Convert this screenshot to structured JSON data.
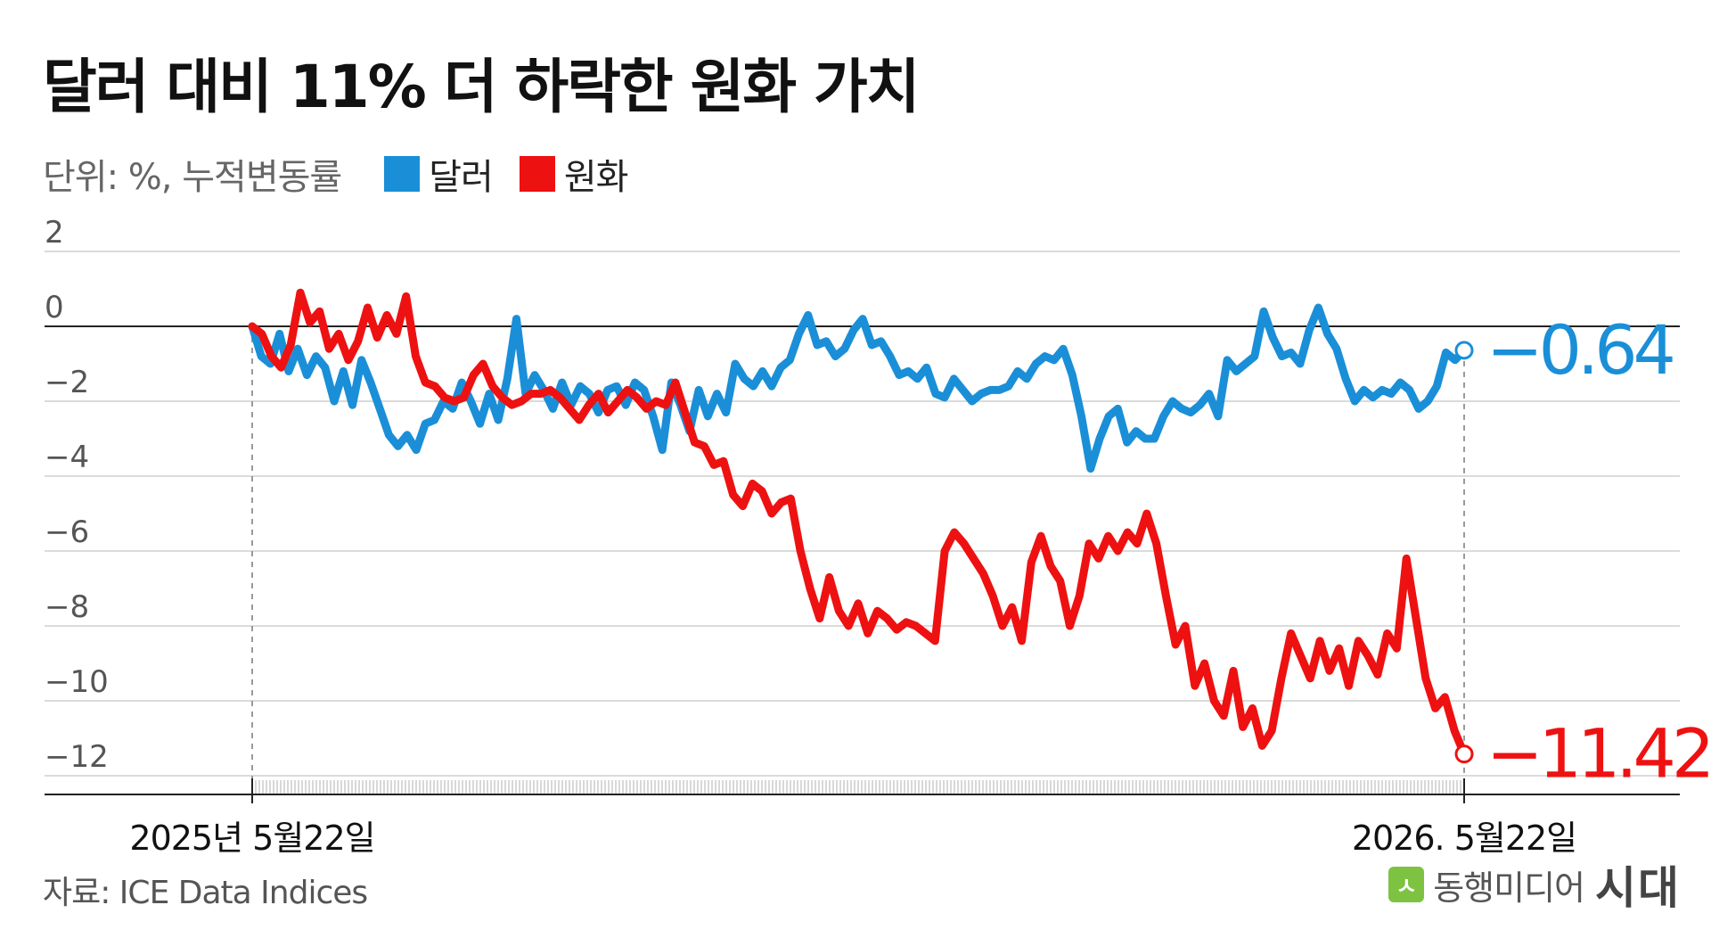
{
  "title": "달러 대비 11% 더 하락한 원화 가치",
  "unit_label": "단위: %, 누적변동률",
  "legend": [
    {
      "label": "달러",
      "color": "#1a8fd8"
    },
    {
      "label": "원화",
      "color": "#ee1111"
    }
  ],
  "source": "자료: ICE Data Indices",
  "brand": {
    "logo_glyph": "ㅅ",
    "name": "동행미디어",
    "tag": "시대",
    "logo_color": "#7dc241"
  },
  "chart_data": {
    "type": "line",
    "title": "달러 대비 11% 더 하락한 원화 가치",
    "xlabel": "",
    "ylabel": "단위: %, 누적변동률",
    "ylim": [
      -12.5,
      2
    ],
    "yticks": [
      2,
      0,
      -2,
      -4,
      -6,
      -8,
      -10,
      -12
    ],
    "ytick_labels": [
      "2",
      "0",
      "−2",
      "−4",
      "−6",
      "−8",
      "−10",
      "−12"
    ],
    "x_start_label": "2025년 5월22일",
    "x_end_label": "2026. 5월22일",
    "grid": true,
    "legend_position": "top-left",
    "series": [
      {
        "name": "달러",
        "color": "#1a8fd8",
        "end_label": "−0.64",
        "values": [
          0,
          -0.8,
          -1.0,
          -0.2,
          -1.2,
          -0.6,
          -1.3,
          -0.8,
          -1.1,
          -2.0,
          -1.2,
          -2.1,
          -0.9,
          -1.5,
          -2.2,
          -2.9,
          -3.2,
          -2.9,
          -3.3,
          -2.6,
          -2.5,
          -2.0,
          -2.2,
          -1.5,
          -2.0,
          -2.6,
          -1.8,
          -2.5,
          -1.4,
          0.2,
          -1.8,
          -1.3,
          -1.7,
          -2.2,
          -1.5,
          -2.1,
          -1.6,
          -1.8,
          -2.3,
          -1.7,
          -1.6,
          -2.1,
          -1.5,
          -1.7,
          -2.4,
          -3.3,
          -1.5,
          -2.1,
          -2.8,
          -1.7,
          -2.4,
          -1.8,
          -2.3,
          -1.0,
          -1.4,
          -1.6,
          -1.2,
          -1.6,
          -1.1,
          -0.9,
          -0.2,
          0.3,
          -0.5,
          -0.4,
          -0.8,
          -0.6,
          -0.1,
          0.2,
          -0.5,
          -0.4,
          -0.8,
          -1.3,
          -1.2,
          -1.4,
          -1.1,
          -1.8,
          -1.9,
          -1.4,
          -1.7,
          -2.0,
          -1.8,
          -1.7,
          -1.7,
          -1.6,
          -1.2,
          -1.4,
          -1.0,
          -0.8,
          -0.9,
          -0.6,
          -1.3,
          -2.4,
          -3.8,
          -3.0,
          -2.4,
          -2.2,
          -3.1,
          -2.8,
          -3.0,
          -3.0,
          -2.4,
          -2.0,
          -2.2,
          -2.3,
          -2.1,
          -1.8,
          -2.4,
          -0.9,
          -1.2,
          -1.0,
          -0.8,
          0.4,
          -0.3,
          -0.8,
          -0.7,
          -1.0,
          -0.1,
          0.5,
          -0.2,
          -0.6,
          -1.4,
          -2.0,
          -1.7,
          -1.9,
          -1.7,
          -1.8,
          -1.5,
          -1.7,
          -2.2,
          -2.0,
          -1.6,
          -0.7,
          -0.9,
          -0.64
        ]
      },
      {
        "name": "원화",
        "color": "#ee1111",
        "end_label": "−11.42",
        "values": [
          0,
          -0.2,
          -0.8,
          -1.1,
          -0.5,
          0.9,
          0.1,
          0.4,
          -0.6,
          -0.2,
          -0.9,
          -0.4,
          0.5,
          -0.3,
          0.3,
          -0.2,
          0.8,
          -0.8,
          -1.5,
          -1.6,
          -1.9,
          -2.0,
          -1.9,
          -1.3,
          -1.0,
          -1.6,
          -1.9,
          -2.1,
          -2.0,
          -1.8,
          -1.8,
          -1.7,
          -1.9,
          -2.2,
          -2.5,
          -2.1,
          -1.8,
          -2.3,
          -2.0,
          -1.7,
          -1.9,
          -2.2,
          -2.0,
          -2.1,
          -1.5,
          -2.3,
          -3.1,
          -3.2,
          -3.7,
          -3.6,
          -4.5,
          -4.8,
          -4.2,
          -4.4,
          -5.0,
          -4.7,
          -4.6,
          -6.0,
          -7.0,
          -7.8,
          -6.7,
          -7.6,
          -8.0,
          -7.4,
          -8.2,
          -7.6,
          -7.8,
          -8.1,
          -7.9,
          -8.0,
          -8.2,
          -8.4,
          -6.0,
          -5.5,
          -5.8,
          -6.2,
          -6.6,
          -7.2,
          -8.0,
          -7.5,
          -8.4,
          -6.3,
          -5.6,
          -6.4,
          -6.8,
          -8.0,
          -7.2,
          -5.8,
          -6.2,
          -5.6,
          -6.0,
          -5.5,
          -5.8,
          -5.0,
          -5.8,
          -7.2,
          -8.5,
          -8.0,
          -9.6,
          -9.0,
          -10.0,
          -10.4,
          -9.2,
          -10.7,
          -10.2,
          -11.2,
          -10.8,
          -9.4,
          -8.2,
          -8.8,
          -9.4,
          -8.4,
          -9.2,
          -8.6,
          -9.6,
          -8.4,
          -8.8,
          -9.3,
          -8.2,
          -8.6,
          -6.2,
          -7.8,
          -9.4,
          -10.2,
          -9.9,
          -10.8,
          -11.42
        ]
      }
    ]
  }
}
